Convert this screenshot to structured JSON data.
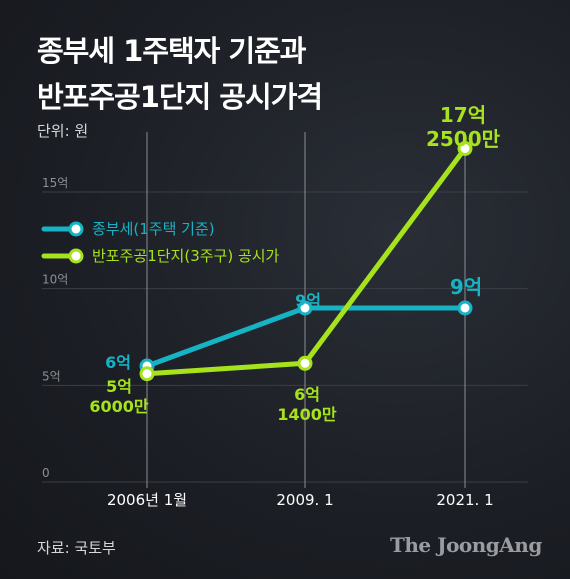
{
  "title_lines": [
    "종부세 1주택자 기준과",
    "반포주공1단지 공시가격"
  ],
  "unit": "단위: 원",
  "source": "자료: 국토부",
  "brand": "The JoongAng",
  "colors": {
    "series1": "#16b3c4",
    "series2": "#a6e31c",
    "grid": "#3a3e46",
    "tick": "#8c8f96"
  },
  "chart_data": {
    "type": "line",
    "title": "종부세 1주택자 기준과 반포주공1단지 공시가격",
    "xlabel": "",
    "ylabel": "",
    "categories": [
      "2006년 1월",
      "2009. 1",
      "2021. 1"
    ],
    "yticks": [
      "0",
      "5억",
      "10억",
      "15억"
    ],
    "ylim": [
      0,
      17.25
    ],
    "grid": true,
    "legend_position": "upper-left",
    "series": [
      {
        "name": "종부세(1주택 기준)",
        "values": [
          6,
          9,
          9
        ],
        "labels": [
          [
            "6억"
          ],
          [
            "9억"
          ],
          [
            "9억"
          ]
        ]
      },
      {
        "name": "반포주공1단지(3주구) 공시가",
        "values": [
          5.6,
          6.14,
          17.25
        ],
        "labels": [
          [
            "5억",
            "6000만"
          ],
          [
            "6억",
            "1400만"
          ],
          [
            "17억",
            "2500만"
          ]
        ]
      }
    ]
  }
}
